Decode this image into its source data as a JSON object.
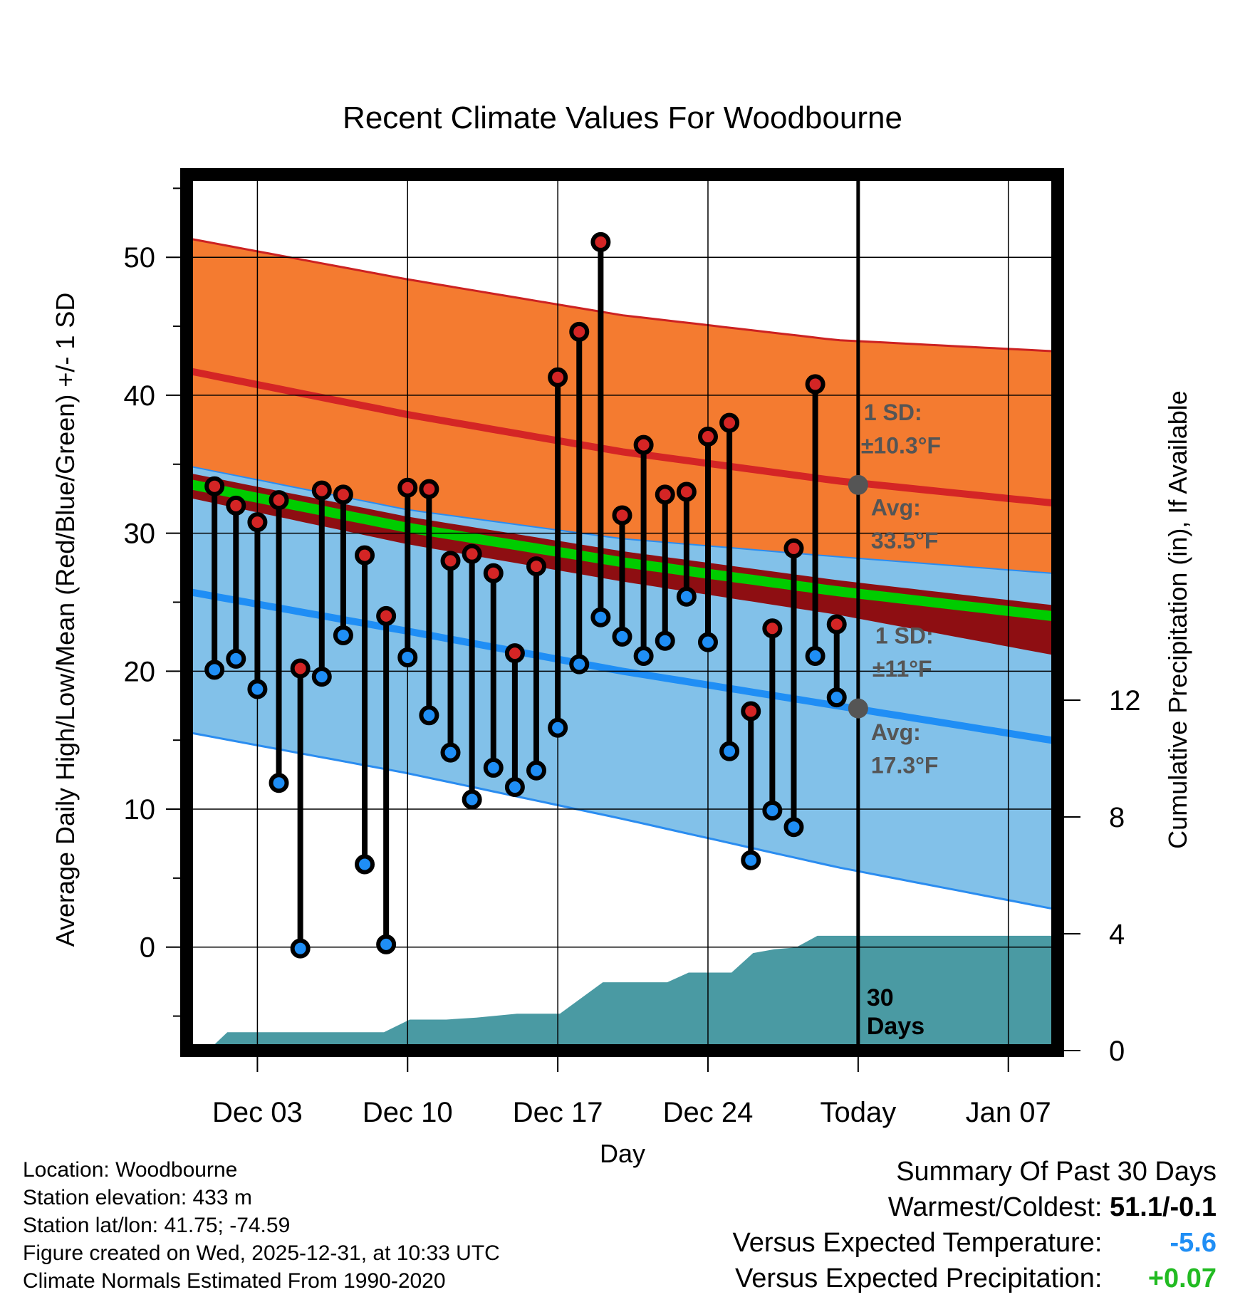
{
  "chart_data": {
    "type": "line",
    "title": "Recent Climate Values For Woodbourne",
    "xlabel": "Day",
    "ylabel_left": "Average Daily High/Low/Mean (Red/Blue/Green) +/- 1 SD",
    "ylabel_right": "Cumulative Precipitation (in), If Available",
    "x_ticks": [
      {
        "day": 3,
        "label": "Dec 03"
      },
      {
        "day": 10,
        "label": "Dec 10"
      },
      {
        "day": 17,
        "label": "Dec 17"
      },
      {
        "day": 24,
        "label": "Dec 24"
      },
      {
        "day": 31,
        "label": "Today"
      },
      {
        "day": 38,
        "label": "Jan 07"
      }
    ],
    "xlim": [
      -0.3,
      40.3
    ],
    "ylim_left": [
      -7.5,
      56
    ],
    "ylim_right": [
      0,
      30
    ],
    "y_ticks_left": [
      0,
      10,
      20,
      30,
      40,
      50
    ],
    "y_ticks_right": [
      0,
      4,
      8,
      12
    ],
    "today_day": 31,
    "normals": {
      "days": [
        0,
        10,
        20,
        30,
        40
      ],
      "high_avg": [
        41.7,
        38.6,
        35.9,
        33.8,
        32.2
      ],
      "high_sd_upper": [
        51.3,
        48.4,
        45.8,
        44.0,
        43.2
      ],
      "high_sd_lower": [
        34.8,
        31.7,
        29.6,
        28.3,
        27.1
      ],
      "mean": [
        33.5,
        30.4,
        27.9,
        25.8,
        24.0
      ],
      "mean_band_upper": [
        34.3,
        31.2,
        28.7,
        26.6,
        24.8
      ],
      "mean_band_lower": [
        32.5,
        29.2,
        26.5,
        24.1,
        21.2
      ],
      "low_avg": [
        25.7,
        22.9,
        20.0,
        17.5,
        15.0
      ],
      "low_sd_upper": [
        34.8,
        31.7,
        29.6,
        28.3,
        27.1
      ],
      "low_sd_lower": [
        15.5,
        12.6,
        9.3,
        5.8,
        2.8
      ]
    },
    "daily": {
      "days": [
        1,
        2,
        3,
        4,
        5,
        6,
        7,
        8,
        9,
        10,
        11,
        12,
        13,
        14,
        15,
        16,
        17,
        18,
        19,
        20,
        21,
        22,
        23,
        24,
        25,
        26,
        27,
        28,
        29,
        30
      ],
      "highs": [
        33.4,
        32.0,
        30.8,
        32.4,
        20.2,
        33.1,
        32.8,
        28.4,
        24.0,
        33.3,
        33.2,
        28.0,
        28.5,
        27.1,
        21.3,
        27.6,
        41.3,
        44.6,
        51.1,
        31.3,
        36.4,
        32.8,
        33.0,
        37.0,
        38.0,
        17.1,
        23.1,
        28.9,
        40.8,
        23.4
      ],
      "lows": [
        20.1,
        20.9,
        18.7,
        11.9,
        -0.1,
        19.6,
        22.6,
        6.0,
        0.2,
        21.0,
        16.8,
        14.1,
        10.7,
        13.0,
        11.6,
        12.8,
        15.9,
        20.5,
        23.9,
        22.5,
        21.1,
        22.2,
        25.4,
        22.1,
        14.2,
        6.3,
        9.9,
        8.7,
        21.1,
        18.1
      ]
    },
    "precip": {
      "days": [
        0.7,
        1.6,
        8.9,
        10.1,
        11.8,
        13.2,
        15.1,
        17.1,
        19.1,
        20.1,
        21.1,
        22.1,
        23.1,
        24.1,
        25.1,
        26.1,
        27.1,
        28.1,
        29.1,
        40.3
      ],
      "cumulative_in": [
        0,
        0.63,
        0.63,
        1.06,
        1.06,
        1.13,
        1.26,
        1.26,
        2.34,
        2.34,
        2.34,
        2.34,
        2.67,
        2.67,
        2.67,
        3.34,
        3.47,
        3.53,
        3.93,
        3.93
      ]
    },
    "annotations": {
      "high_sd": "1 SD:",
      "high_sd_value": "±10.3°F",
      "high_avg_label": "Avg:",
      "high_avg_value": "33.5°F",
      "high_avg_marker": 33.5,
      "low_sd": "1 SD:",
      "low_sd_value": "±11°F",
      "low_avg_label": "Avg:",
      "low_avg_value": "17.3°F",
      "low_avg_marker": 17.3,
      "days_line1": "30",
      "days_line2": "Days"
    },
    "colors": {
      "high_band": "#f47b30",
      "high_line": "#d42525",
      "mean_band": "#8e0e12",
      "mean_line": "#00cc00",
      "low_band": "#82c1e9",
      "low_line": "#1f8ef5",
      "low_edge": "#2a8cf0",
      "high_edge": "#cc2222",
      "precip": "#4a9aa3",
      "high_dot": "#d42525",
      "low_dot": "#1f8ef5",
      "marker": "#555555"
    }
  },
  "meta": {
    "location": "Location: Woodbourne",
    "elevation": "Station elevation: 433 m",
    "latlon": "Station lat/lon: 41.75; -74.59",
    "created": "Figure created on Wed, 2025-12-31, at 10:33 UTC",
    "normals": "Climate Normals Estimated From 1990-2020"
  },
  "summary": {
    "title": "Summary Of Past 30 Days",
    "warmest_label": "Warmest/Coldest:",
    "warmest_value": "51.1/-0.1",
    "temp_label": "Versus Expected Temperature:",
    "temp_value": "-5.6",
    "temp_color": "#1f8ef5",
    "precip_label": "Versus Expected Precipitation:",
    "precip_value": "+0.07",
    "precip_color": "#22bb22"
  }
}
